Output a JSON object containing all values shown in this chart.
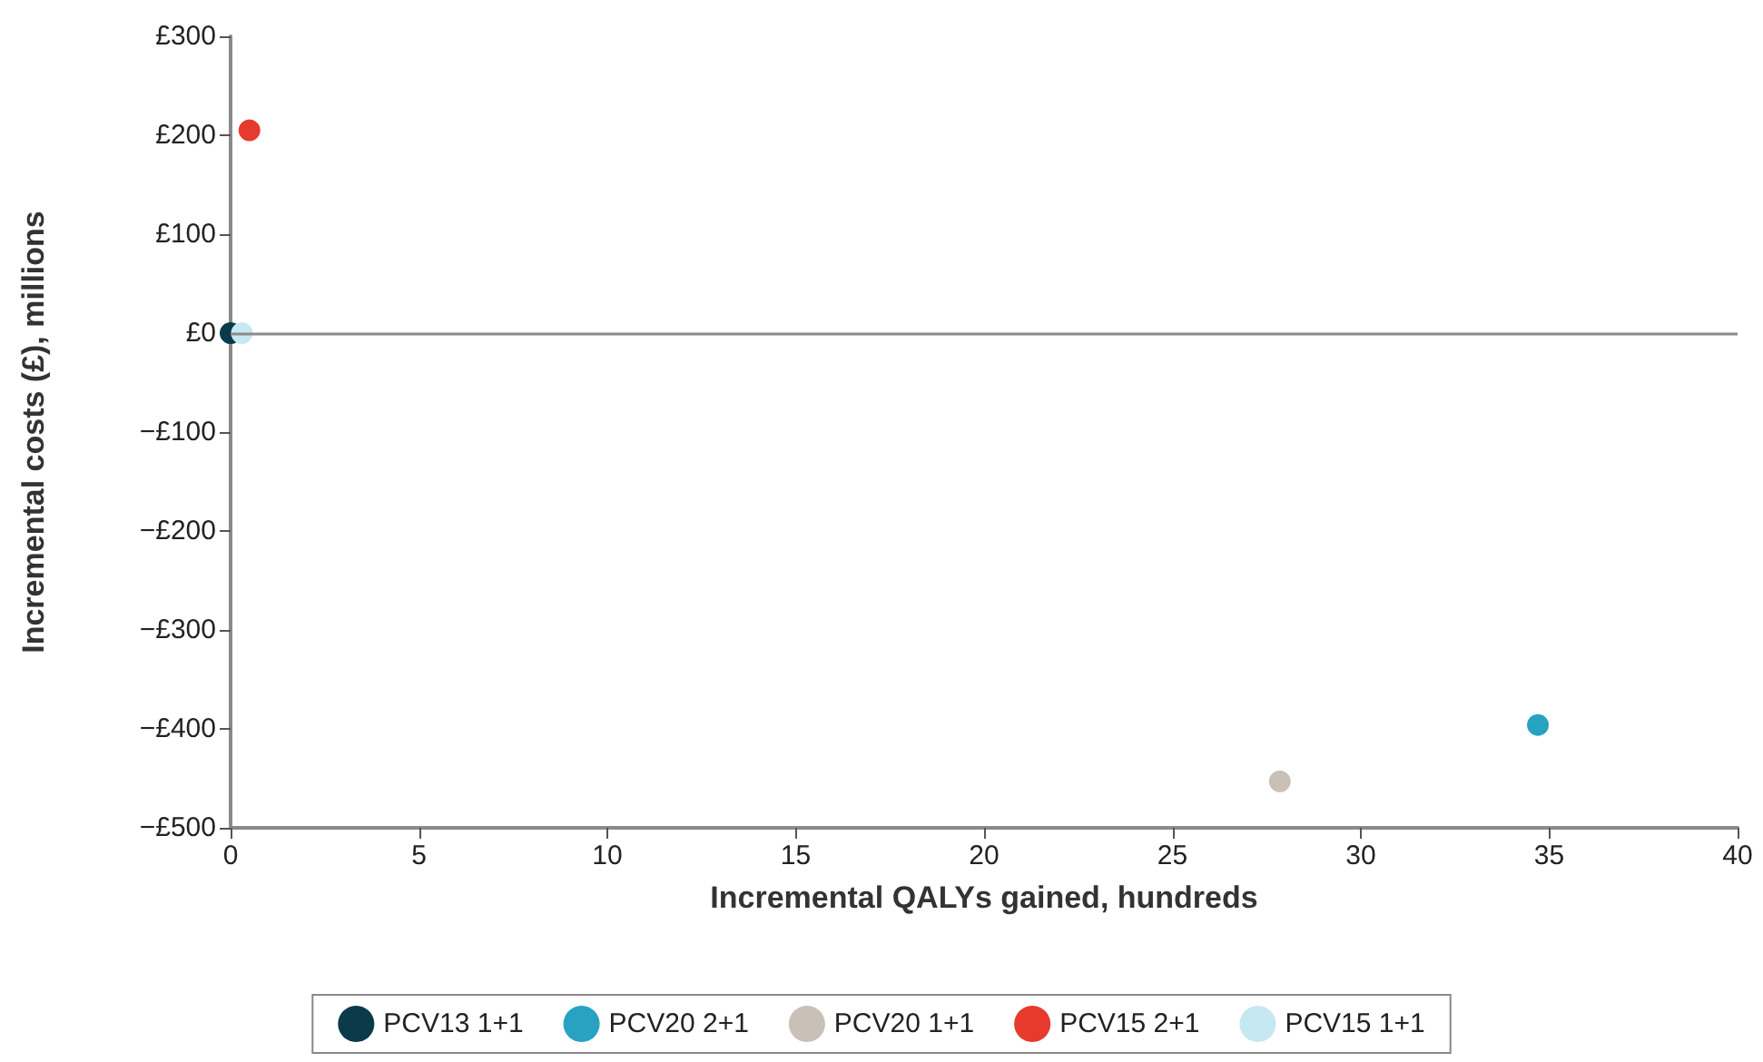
{
  "chart_data": {
    "type": "scatter",
    "xlabel": "Incremental QALYs gained, hundreds",
    "ylabel": "Incremental costs (£), millions",
    "series": [
      {
        "name": "PCV13 1+1",
        "color": "#0b3a4a",
        "x": [
          0
        ],
        "values": [
          0
        ]
      },
      {
        "name": "PCV20 2+1",
        "color": "#27a3c1",
        "x": [
          34.7
        ],
        "values": [
          -396
        ]
      },
      {
        "name": "PCV20 1+1",
        "color": "#c9c0b8",
        "x": [
          27.85
        ],
        "values": [
          -453
        ]
      },
      {
        "name": "PCV15 2+1",
        "color": "#e63a2e",
        "x": [
          0.5
        ],
        "values": [
          205
        ]
      },
      {
        "name": "PCV15 1+1",
        "color": "#c6e8f2",
        "x": [
          0.3
        ],
        "values": [
          0
        ]
      }
    ],
    "xlim": [
      0,
      40
    ],
    "xticks": [
      0,
      5,
      10,
      15,
      20,
      25,
      30,
      35,
      40
    ],
    "ylim": [
      -500,
      300
    ],
    "yticks": [
      {
        "value": -500,
        "label": "−£500"
      },
      {
        "value": -400,
        "label": "−£400"
      },
      {
        "value": -300,
        "label": "−£300"
      },
      {
        "value": -200,
        "label": "−£200"
      },
      {
        "value": -100,
        "label": "−£100"
      },
      {
        "value": 0,
        "label": "£0"
      },
      {
        "value": 100,
        "label": "£100"
      },
      {
        "value": 200,
        "label": "£200"
      },
      {
        "value": 300,
        "label": "£300"
      }
    ],
    "ref_lines": [
      {
        "axis": "y",
        "value": 0,
        "color": "#8a8a8a"
      }
    ],
    "legend": "bottom",
    "grid": false,
    "marker": "circle"
  }
}
